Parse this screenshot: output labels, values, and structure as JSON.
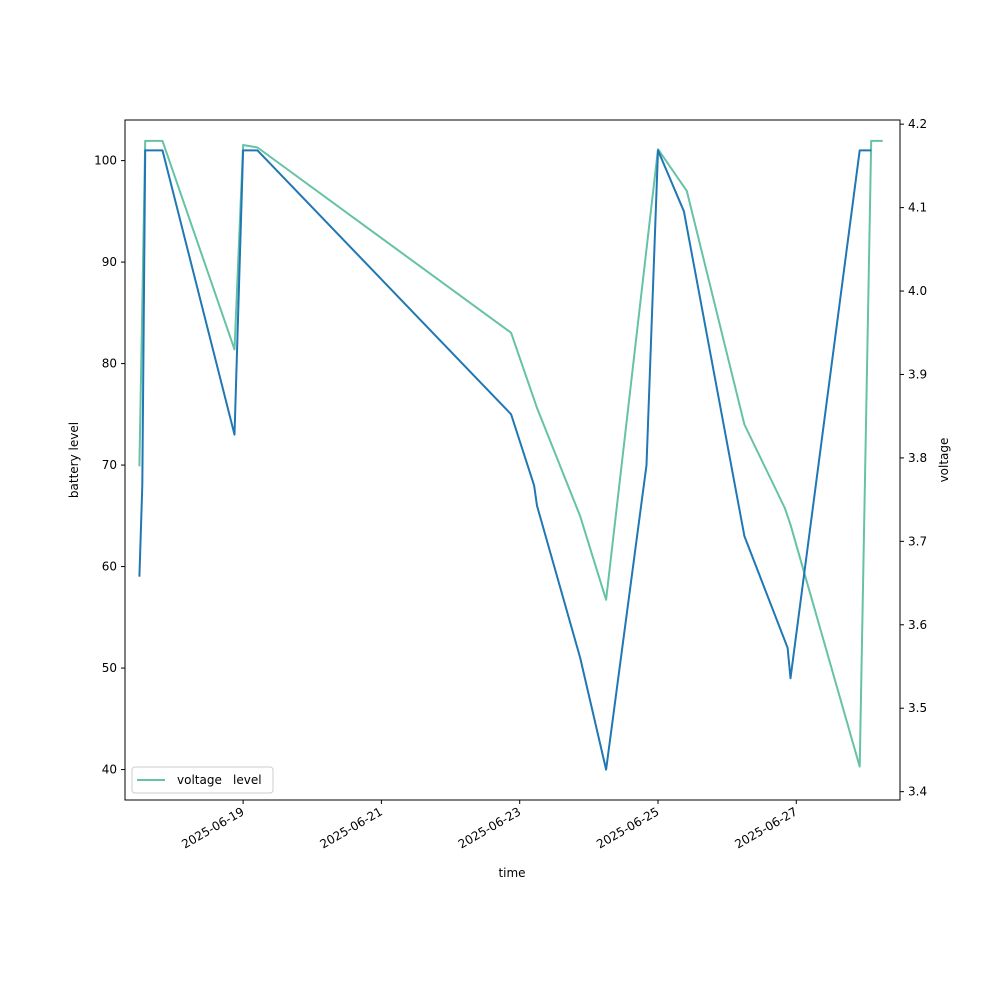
{
  "chart_data": {
    "type": "line",
    "xlabel": "time",
    "ylabel_left": "battery level",
    "ylabel_right": "voltage",
    "xlim": [
      "2025-06-17 07:00",
      "2025-06-28 12:00"
    ],
    "ylim_left": [
      37,
      104
    ],
    "ylim_right": [
      3.39,
      4.205
    ],
    "x_ticks": [
      "2025-06-19",
      "2025-06-21",
      "2025-06-23",
      "2025-06-25",
      "2025-06-27"
    ],
    "y_left_ticks": [
      40,
      50,
      60,
      70,
      80,
      90,
      100
    ],
    "y_right_ticks": [
      3.4,
      3.5,
      3.6,
      3.7,
      3.8,
      3.9,
      4.0,
      4.1,
      4.2
    ],
    "grid": false,
    "legend_position": "lower left",
    "series": [
      {
        "name": "level",
        "axis": "left",
        "color": "#1f77b4",
        "points": [
          [
            "2025-06-17 12:00",
            59
          ],
          [
            "2025-06-17 13:00",
            68
          ],
          [
            "2025-06-17 14:00",
            101
          ],
          [
            "2025-06-17 18:00",
            101
          ],
          [
            "2025-06-17 20:00",
            101
          ],
          [
            "2025-06-18 21:00",
            73
          ],
          [
            "2025-06-19 00:00",
            101
          ],
          [
            "2025-06-19 05:00",
            101
          ],
          [
            "2025-06-22 21:00",
            75
          ],
          [
            "2025-06-23 05:00",
            68
          ],
          [
            "2025-06-23 06:00",
            66
          ],
          [
            "2025-06-23 21:00",
            51
          ],
          [
            "2025-06-24 06:00",
            40
          ],
          [
            "2025-06-24 20:00",
            70
          ],
          [
            "2025-06-25 00:00",
            101
          ],
          [
            "2025-06-25 09:00",
            95
          ],
          [
            "2025-06-26 06:00",
            63
          ],
          [
            "2025-06-26 21:00",
            52
          ],
          [
            "2025-06-26 22:00",
            49
          ],
          [
            "2025-06-27 22:00",
            101
          ],
          [
            "2025-06-28 02:00",
            101
          ]
        ]
      },
      {
        "name": "voltage",
        "axis": "right",
        "color": "#66c2a5",
        "points": [
          [
            "2025-06-17 12:00",
            3.79
          ],
          [
            "2025-06-17 14:00",
            4.18
          ],
          [
            "2025-06-17 20:00",
            4.18
          ],
          [
            "2025-06-18 21:00",
            3.93
          ],
          [
            "2025-06-19 00:00",
            4.175
          ],
          [
            "2025-06-19 05:00",
            4.172
          ],
          [
            "2025-06-22 21:00",
            3.95
          ],
          [
            "2025-06-23 06:00",
            3.86
          ],
          [
            "2025-06-23 21:00",
            3.73
          ],
          [
            "2025-06-24 06:00",
            3.63
          ],
          [
            "2025-06-25 00:00",
            4.17
          ],
          [
            "2025-06-25 10:00",
            4.12
          ],
          [
            "2025-06-26 06:00",
            3.84
          ],
          [
            "2025-06-26 20:00",
            3.74
          ],
          [
            "2025-06-26 22:00",
            3.72
          ],
          [
            "2025-06-27 22:00",
            3.43
          ],
          [
            "2025-06-28 02:00",
            4.18
          ],
          [
            "2025-06-28 06:00",
            4.18
          ]
        ]
      }
    ],
    "legend": [
      {
        "label": "voltage",
        "color": "#66c2a5"
      },
      {
        "label": "level",
        "color": "#1f77b4"
      }
    ]
  }
}
